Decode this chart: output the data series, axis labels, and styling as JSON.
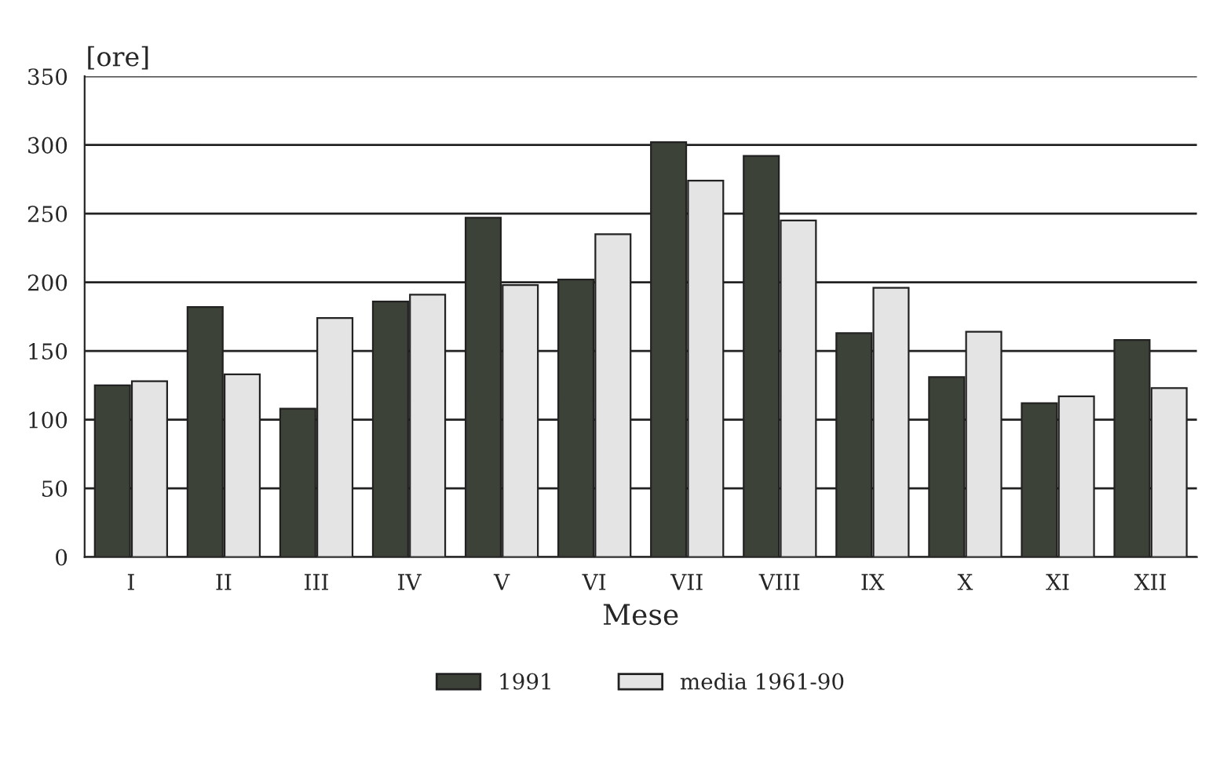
{
  "chart_data": {
    "type": "bar",
    "xlabel": "Mese",
    "ylabel": "[ore]",
    "categories": [
      "I",
      "II",
      "III",
      "IV",
      "V",
      "VI",
      "VII",
      "VIII",
      "IX",
      "X",
      "XI",
      "XII"
    ],
    "series": [
      {
        "name": "1991",
        "color": "#3d4238",
        "values": [
          125,
          182,
          108,
          186,
          247,
          202,
          302,
          292,
          163,
          131,
          112,
          158
        ]
      },
      {
        "name": "media 1961-90",
        "color": "#e4e4e4",
        "values": [
          128,
          133,
          174,
          191,
          198,
          235,
          274,
          245,
          196,
          164,
          117,
          123
        ]
      }
    ],
    "ylim": [
      0,
      350
    ],
    "yticks": [
      0,
      50,
      100,
      150,
      200,
      250,
      300,
      350
    ],
    "grid": "y",
    "legend": "bottom"
  }
}
